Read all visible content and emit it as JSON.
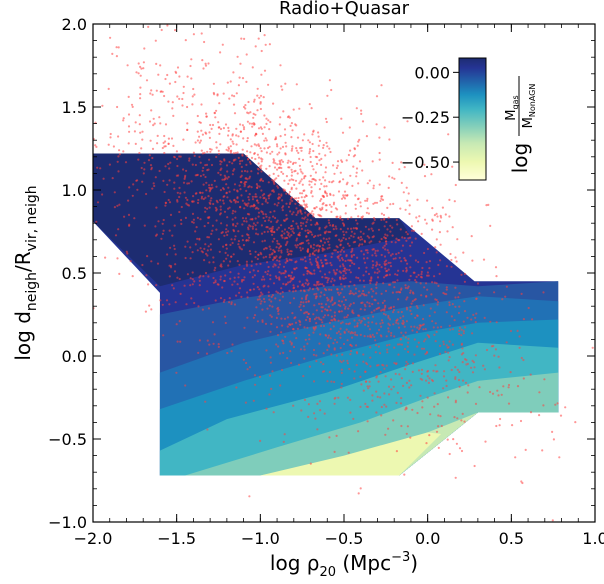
{
  "chart_data": {
    "type": "contour+scatter",
    "title": "Radio+Quasar",
    "xlabel": "log ρ",
    "xlabel_sub": "20",
    "xlabel_units": " (Mpc",
    "xlabel_exp": "−3",
    "xlabel_close": ")",
    "ylabel": "log d",
    "ylabel_sub1": "neigh",
    "ylabel_mid": "/R",
    "ylabel_sub2": "vir, neigh",
    "xlim": [
      -2.0,
      1.0
    ],
    "ylim": [
      -1.0,
      2.0
    ],
    "xticks": [
      "−2.0",
      "−1.5",
      "−1.0",
      "−0.5",
      "0.0",
      "0.5",
      "1.0"
    ],
    "yticks": [
      "−1.0",
      "−0.5",
      "0.0",
      "0.5",
      "1.0",
      "1.5",
      "2.0"
    ],
    "grid": false,
    "colorbar": {
      "label": "log",
      "label_num": "M",
      "label_num_sub": "gas",
      "label_den": "M",
      "label_den_sub": "NonAGN",
      "ticks": [
        "0.00",
        "−0.25",
        "−0.50"
      ],
      "tick_values": [
        0.0,
        -0.25,
        -0.5
      ],
      "range": [
        -0.6,
        0.08
      ],
      "colormap": "YlGnBu",
      "placement": "top-right"
    },
    "contour_levels": [
      {
        "level": 0.05,
        "color": "#1d2c71",
        "boundary": [
          [
            -2.0,
            1.22
          ],
          [
            -1.1,
            1.22
          ],
          [
            -0.67,
            0.83
          ],
          [
            -0.17,
            0.83
          ],
          [
            -0.17,
            0.65
          ]
        ]
      },
      {
        "level": 0.0,
        "color": "#253494",
        "boundary": [
          [
            -2.0,
            0.81
          ],
          [
            -1.6,
            0.42
          ],
          [
            -1.1,
            0.55
          ],
          [
            -0.65,
            0.62
          ],
          [
            -0.2,
            0.72
          ],
          [
            0.05,
            0.63
          ],
          [
            0.3,
            0.45
          ]
        ]
      },
      {
        "level": -0.05,
        "color": "#2856a3",
        "boundary": [
          [
            -1.6,
            0.25
          ],
          [
            -1.1,
            0.35
          ],
          [
            -0.6,
            0.42
          ],
          [
            -0.1,
            0.45
          ],
          [
            0.3,
            0.42
          ],
          [
            0.78,
            0.45
          ]
        ]
      },
      {
        "level": -0.1,
        "color": "#2171b5",
        "boundary": [
          [
            -1.6,
            -0.1
          ],
          [
            -1.1,
            0.08
          ],
          [
            -0.6,
            0.2
          ],
          [
            -0.1,
            0.3
          ],
          [
            0.3,
            0.36
          ],
          [
            0.78,
            0.33
          ]
        ]
      },
      {
        "level": -0.15,
        "color": "#1d91c0",
        "boundary": [
          [
            -1.6,
            -0.32
          ],
          [
            -1.1,
            -0.15
          ],
          [
            -0.6,
            0.0
          ],
          [
            -0.1,
            0.13
          ],
          [
            0.3,
            0.2
          ],
          [
            0.78,
            0.22
          ]
        ]
      },
      {
        "level": -0.25,
        "color": "#41b6c4",
        "boundary": [
          [
            -1.6,
            -0.57
          ],
          [
            -1.2,
            -0.38
          ],
          [
            -0.6,
            -0.22
          ],
          [
            -0.1,
            -0.05
          ],
          [
            0.3,
            0.08
          ],
          [
            0.78,
            0.05
          ]
        ]
      },
      {
        "level": -0.35,
        "color": "#7fcdbb",
        "boundary": [
          [
            -1.45,
            -0.72
          ],
          [
            -0.9,
            -0.55
          ],
          [
            -0.4,
            -0.4
          ],
          [
            0.0,
            -0.25
          ],
          [
            0.3,
            -0.15
          ],
          [
            0.78,
            -0.1
          ]
        ]
      },
      {
        "level": -0.45,
        "color": "#c7e9b4",
        "boundary": [
          [
            -1.0,
            -0.72
          ],
          [
            -0.5,
            -0.62
          ],
          [
            -0.1,
            -0.5
          ],
          [
            0.3,
            -0.34
          ]
        ]
      },
      {
        "level": -0.55,
        "color": "#edf8b1",
        "boundary": [
          [
            -1.0,
            -0.72
          ],
          [
            -0.17,
            -0.72
          ],
          [
            0.08,
            -0.47
          ]
        ]
      }
    ],
    "scatter": {
      "color": "#ff4040",
      "n_points": 3000,
      "description_count_shown": 3000
    }
  }
}
